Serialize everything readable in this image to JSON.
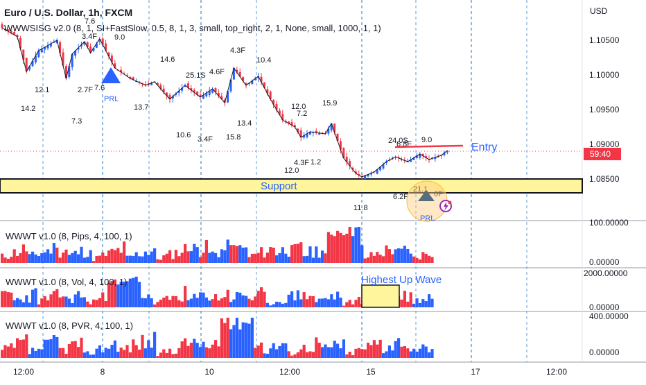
{
  "header": {
    "title": "Euro / U.S. Dollar, 1h, FXCM",
    "indicator": "WWWSISG v2.0 (8, 1, SI+FastSlow, 0.5, 8, 1, 3, small, top_right, 2, 1, None, small, 1000, 1, 1)",
    "currency": "USD"
  },
  "colors": {
    "up": "#2962ff",
    "down": "#f23645",
    "support_fill": "#fff59d",
    "entry": "#f23645",
    "price_tag": "#f23645",
    "grid": "#5b9bd5"
  },
  "main": {
    "price_ticks": [
      "1.10500",
      "1.10000",
      "1.09500",
      "1.09000",
      "1.08500"
    ],
    "price_tag": "59:40",
    "support_label": "Support",
    "entry_label": "Entry",
    "prl_labels": [
      "PRL",
      "PRL"
    ],
    "wave_labels": [
      "7.6",
      "3.4F",
      "7.6",
      "9.0",
      "14.2",
      "12.1",
      "2.7F",
      "7.3",
      "14.6",
      "13.7",
      "25.1S",
      "4.6F",
      "4.3F",
      "10.4",
      "10.6",
      "3.4F",
      "15.8",
      "13.4",
      "12.0",
      "7.2",
      "15.9",
      "12.0",
      "4.3F",
      "1.2",
      "11.8",
      "24.0S",
      "6.8F",
      "9.0",
      "6.2F",
      "21.1",
      "6F"
    ]
  },
  "panels": [
    {
      "label": "WWWT v1.0 (8, Pips, 4, 100, 1)",
      "top_value": "100.00000",
      "bottom_value": "0.00000"
    },
    {
      "label": "WWWT v1.0 (8, Vol, 4, 100, 1)",
      "top_value": "2000.00000",
      "bottom_value": "0.00000",
      "annotation": "Highest Up Wave"
    },
    {
      "label": "WWWT v1.0 (8, PVR, 4, 100, 1)",
      "top_value": "400.00000",
      "bottom_value": "0.00000"
    }
  ],
  "x_axis": {
    "ticks": [
      "12:00",
      "8",
      "10",
      "12:00",
      "15",
      "17",
      "12:00"
    ]
  },
  "chart_data": {
    "type": "candlestick",
    "title": "Euro / U.S. Dollar, 1h, FXCM",
    "ylabel": "USD",
    "ylim": [
      1.0805,
      1.109
    ],
    "path": [
      [
        0,
        1.1068
      ],
      [
        5,
        1.1055
      ],
      [
        8,
        1.1005
      ],
      [
        12,
        1.1035
      ],
      [
        18,
        1.105
      ],
      [
        21,
        1.0995
      ],
      [
        23,
        1.103
      ],
      [
        27,
        1.1048
      ],
      [
        29,
        1.1032
      ],
      [
        32,
        1.1052
      ],
      [
        37,
        1.101
      ],
      [
        42,
        1.0995
      ],
      [
        47,
        1.0985
      ],
      [
        50,
        1.099
      ],
      [
        55,
        1.0965
      ],
      [
        60,
        1.0985
      ],
      [
        65,
        1.0968
      ],
      [
        69,
        1.098
      ],
      [
        73,
        1.096
      ],
      [
        76,
        1.101
      ],
      [
        80,
        1.0985
      ],
      [
        84,
        1.0998
      ],
      [
        88,
        1.0965
      ],
      [
        92,
        1.0935
      ],
      [
        96,
        1.0925
      ],
      [
        98,
        1.091
      ],
      [
        101,
        1.0918
      ],
      [
        106,
        1.0915
      ],
      [
        108,
        1.093
      ],
      [
        112,
        1.088
      ],
      [
        116,
        1.0858
      ],
      [
        118,
        1.0853
      ],
      [
        122,
        1.086
      ],
      [
        126,
        1.0875
      ],
      [
        129,
        1.0882
      ],
      [
        133,
        1.0875
      ],
      [
        137,
        1.0886
      ],
      [
        140,
        1.0878
      ],
      [
        144,
        1.0884
      ],
      [
        146,
        1.0891
      ]
    ],
    "support_zone": [
      1.083,
      1.085
    ],
    "entry_level": 1.0895
  }
}
